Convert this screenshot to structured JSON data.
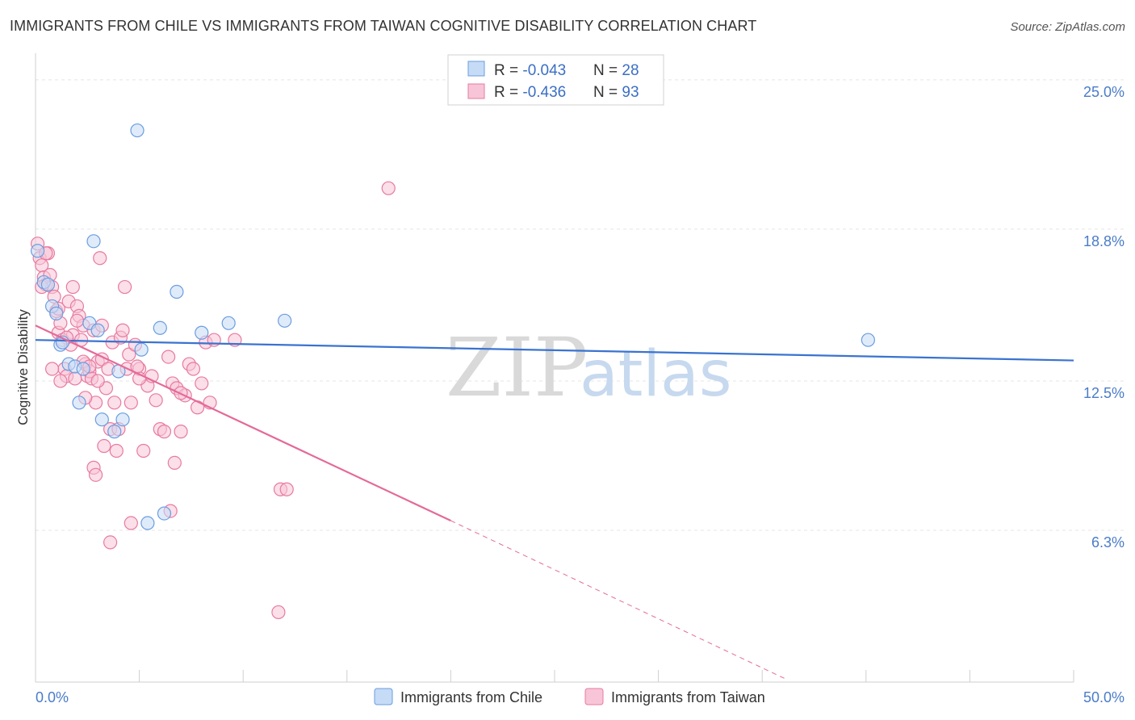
{
  "title": "IMMIGRANTS FROM CHILE VS IMMIGRANTS FROM TAIWAN COGNITIVE DISABILITY CORRELATION CHART",
  "source": "Source: ZipAtlas.com",
  "watermark": {
    "zip": "ZIP",
    "atlas": "atlas"
  },
  "colors": {
    "chile": "#6a9de0",
    "chile_fill": "#c6dbf6",
    "taiwan": "#e87aa0",
    "taiwan_fill": "#f7c5d7",
    "chile_line": "#3a73d0",
    "taiwan_line": "#e46a98",
    "grid": "#e5e5e5",
    "tick_label": "#4a7cc9"
  },
  "legend_box": {
    "rows": [
      {
        "r_label": "R = ",
        "r_value": "-0.043",
        "n_label": "N = ",
        "n_value": "28"
      },
      {
        "r_label": "R = ",
        "r_value": "-0.436",
        "n_label": "N = ",
        "n_value": "93"
      }
    ]
  },
  "chart_data": {
    "type": "scatter",
    "xlabel": "",
    "ylabel": "Cognitive Disability",
    "xlim": [
      0,
      50
    ],
    "ylim": [
      0,
      25.8
    ],
    "x_tick_labels": [
      {
        "value": 0,
        "label": "0.0%"
      },
      {
        "value": 50,
        "label": "50.0%"
      }
    ],
    "y_ticks": [
      {
        "value": 6.3,
        "label": "6.3%"
      },
      {
        "value": 12.5,
        "label": "12.5%"
      },
      {
        "value": 18.8,
        "label": "18.8%"
      },
      {
        "value": 25.0,
        "label": "25.0%"
      }
    ],
    "grid": true,
    "legend_position": "bottom",
    "series": [
      {
        "name": "Immigrants from Chile",
        "r": -0.043,
        "n": 28,
        "trend": {
          "x0": 0,
          "y0": 14.2,
          "x1": 50,
          "y1": 13.35
        },
        "points": [
          [
            0.1,
            17.9
          ],
          [
            0.4,
            16.6
          ],
          [
            0.6,
            16.5
          ],
          [
            0.8,
            15.6
          ],
          [
            1.0,
            15.3
          ],
          [
            1.2,
            14.0
          ],
          [
            1.3,
            14.1
          ],
          [
            1.6,
            13.2
          ],
          [
            1.9,
            13.1
          ],
          [
            2.1,
            11.6
          ],
          [
            2.6,
            14.9
          ],
          [
            2.8,
            18.3
          ],
          [
            3.0,
            14.6
          ],
          [
            3.2,
            10.9
          ],
          [
            3.8,
            10.4
          ],
          [
            4.2,
            10.9
          ],
          [
            4.9,
            22.9
          ],
          [
            5.1,
            13.8
          ],
          [
            5.4,
            6.6
          ],
          [
            6.0,
            14.7
          ],
          [
            6.2,
            7.0
          ],
          [
            6.8,
            16.2
          ],
          [
            8.0,
            14.5
          ],
          [
            9.3,
            14.9
          ],
          [
            12.0,
            15.0
          ],
          [
            40.1,
            14.2
          ],
          [
            2.3,
            13.0
          ],
          [
            4.0,
            12.9
          ]
        ]
      },
      {
        "name": "Immigrants from Taiwan",
        "r": -0.436,
        "n": 93,
        "trend": {
          "x0": 0,
          "y0": 14.8,
          "x1": 20,
          "y1": 6.7,
          "dash_x1": 36.2,
          "dash_y1": 0.1
        },
        "points": [
          [
            0.1,
            18.2
          ],
          [
            0.2,
            17.6
          ],
          [
            0.3,
            17.3
          ],
          [
            0.4,
            16.8
          ],
          [
            0.5,
            16.5
          ],
          [
            0.6,
            17.8
          ],
          [
            0.7,
            16.9
          ],
          [
            0.8,
            16.4
          ],
          [
            0.9,
            16.0
          ],
          [
            1.0,
            15.4
          ],
          [
            1.1,
            14.5
          ],
          [
            1.2,
            14.9
          ],
          [
            1.3,
            14.2
          ],
          [
            1.4,
            13.0
          ],
          [
            1.5,
            12.7
          ],
          [
            1.6,
            15.8
          ],
          [
            1.7,
            14.0
          ],
          [
            1.8,
            14.4
          ],
          [
            1.9,
            12.6
          ],
          [
            2.0,
            15.6
          ],
          [
            2.1,
            15.2
          ],
          [
            2.2,
            14.2
          ],
          [
            2.3,
            14.8
          ],
          [
            2.4,
            13.2
          ],
          [
            2.5,
            12.7
          ],
          [
            2.6,
            12.9
          ],
          [
            2.7,
            12.6
          ],
          [
            2.8,
            14.6
          ],
          [
            2.9,
            11.6
          ],
          [
            3.0,
            13.3
          ],
          [
            3.1,
            17.6
          ],
          [
            3.2,
            13.4
          ],
          [
            3.3,
            9.8
          ],
          [
            3.4,
            12.2
          ],
          [
            3.5,
            13.0
          ],
          [
            3.6,
            10.5
          ],
          [
            3.7,
            14.1
          ],
          [
            3.8,
            11.6
          ],
          [
            3.9,
            9.6
          ],
          [
            4.0,
            10.5
          ],
          [
            4.1,
            14.3
          ],
          [
            4.3,
            16.4
          ],
          [
            4.4,
            13.0
          ],
          [
            4.5,
            13.6
          ],
          [
            4.6,
            11.6
          ],
          [
            4.8,
            14.0
          ],
          [
            5.0,
            13.0
          ],
          [
            5.2,
            9.6
          ],
          [
            5.4,
            12.3
          ],
          [
            5.6,
            12.7
          ],
          [
            5.8,
            11.7
          ],
          [
            6.0,
            10.5
          ],
          [
            6.2,
            10.4
          ],
          [
            6.4,
            13.5
          ],
          [
            6.6,
            12.4
          ],
          [
            6.8,
            12.2
          ],
          [
            7.0,
            10.4
          ],
          [
            7.2,
            11.9
          ],
          [
            7.4,
            13.2
          ],
          [
            7.6,
            13.0
          ],
          [
            7.8,
            11.4
          ],
          [
            8.0,
            12.4
          ],
          [
            8.2,
            14.1
          ],
          [
            8.4,
            11.6
          ],
          [
            8.6,
            14.2
          ],
          [
            9.6,
            14.2
          ],
          [
            11.8,
            8.0
          ],
          [
            12.1,
            8.0
          ],
          [
            11.7,
            2.9
          ],
          [
            17.0,
            20.5
          ],
          [
            3.6,
            5.8
          ],
          [
            4.6,
            6.6
          ],
          [
            6.5,
            7.1
          ],
          [
            2.8,
            8.9
          ],
          [
            2.9,
            8.6
          ],
          [
            6.7,
            9.1
          ],
          [
            1.1,
            15.5
          ],
          [
            1.5,
            14.3
          ],
          [
            1.8,
            16.4
          ],
          [
            0.3,
            16.4
          ],
          [
            0.8,
            13.0
          ],
          [
            2.3,
            13.3
          ],
          [
            2.6,
            13.1
          ],
          [
            3.2,
            14.8
          ],
          [
            4.2,
            14.6
          ],
          [
            5.0,
            12.6
          ],
          [
            0.5,
            17.8
          ],
          [
            1.2,
            12.5
          ],
          [
            2.0,
            15.0
          ],
          [
            2.4,
            11.8
          ],
          [
            3.0,
            12.5
          ],
          [
            4.9,
            13.1
          ],
          [
            7.0,
            12.0
          ]
        ]
      }
    ]
  }
}
